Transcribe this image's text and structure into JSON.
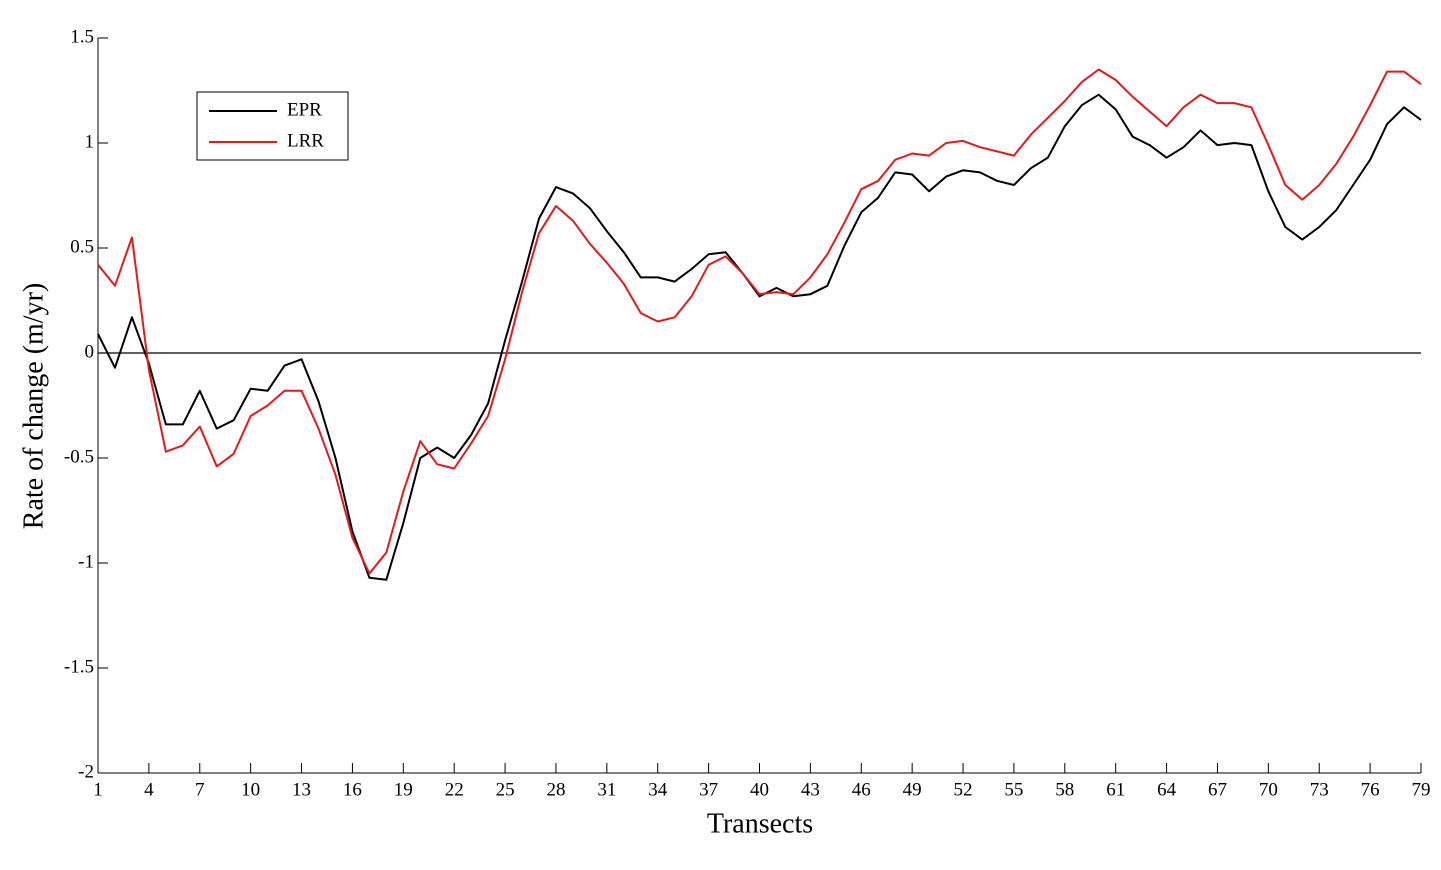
{
  "chart_data": {
    "type": "line",
    "xlabel": "Transects",
    "ylabel": "Rate of change (m/yr)",
    "x": [
      1,
      2,
      3,
      4,
      5,
      6,
      7,
      8,
      9,
      10,
      11,
      12,
      13,
      14,
      15,
      16,
      17,
      18,
      19,
      20,
      21,
      22,
      23,
      24,
      25,
      26,
      27,
      28,
      29,
      30,
      31,
      32,
      33,
      34,
      35,
      36,
      37,
      38,
      39,
      40,
      41,
      42,
      43,
      44,
      45,
      46,
      47,
      48,
      49,
      50,
      51,
      52,
      53,
      54,
      55,
      56,
      57,
      58,
      59,
      60,
      61,
      62,
      63,
      64,
      65,
      66,
      67,
      68,
      69,
      70,
      71,
      72,
      73,
      74,
      75,
      76,
      77,
      78,
      79
    ],
    "series": [
      {
        "name": "EPR",
        "color": "#000000",
        "values": [
          0.09,
          -0.07,
          0.17,
          -0.05,
          -0.34,
          -0.34,
          -0.18,
          -0.36,
          -0.32,
          -0.17,
          -0.18,
          -0.06,
          -0.03,
          -0.23,
          -0.5,
          -0.85,
          -1.07,
          -1.08,
          -0.81,
          -0.5,
          -0.45,
          -0.5,
          -0.39,
          -0.24,
          0.06,
          0.34,
          0.64,
          0.79,
          0.76,
          0.69,
          0.58,
          0.48,
          0.36,
          0.36,
          0.34,
          0.4,
          0.47,
          0.48,
          0.38,
          0.27,
          0.31,
          0.27,
          0.28,
          0.32,
          0.51,
          0.67,
          0.74,
          0.86,
          0.85,
          0.77,
          0.84,
          0.87,
          0.86,
          0.82,
          0.8,
          0.88,
          0.93,
          1.08,
          1.18,
          1.23,
          1.16,
          1.03,
          0.99,
          0.93,
          0.98,
          1.06,
          0.99,
          1.0,
          0.99,
          0.77,
          0.6,
          0.54,
          0.6,
          0.68,
          0.8,
          0.92,
          1.09,
          1.17,
          1.11
        ]
      },
      {
        "name": "LRR",
        "color": "#e31a1c",
        "values": [
          0.42,
          0.32,
          0.55,
          -0.08,
          -0.47,
          -0.44,
          -0.35,
          -0.54,
          -0.48,
          -0.3,
          -0.25,
          -0.18,
          -0.18,
          -0.36,
          -0.58,
          -0.88,
          -1.05,
          -0.95,
          -0.66,
          -0.42,
          -0.53,
          -0.55,
          -0.43,
          -0.3,
          -0.03,
          0.29,
          0.57,
          0.7,
          0.63,
          0.52,
          0.43,
          0.33,
          0.19,
          0.15,
          0.17,
          0.27,
          0.42,
          0.46,
          0.38,
          0.28,
          0.29,
          0.28,
          0.36,
          0.47,
          0.62,
          0.78,
          0.82,
          0.92,
          0.95,
          0.94,
          1.0,
          1.01,
          0.98,
          0.96,
          0.94,
          1.04,
          1.12,
          1.2,
          1.29,
          1.35,
          1.3,
          1.22,
          1.15,
          1.08,
          1.17,
          1.23,
          1.19,
          1.19,
          1.17,
          0.99,
          0.8,
          0.73,
          0.8,
          0.9,
          1.03,
          1.18,
          1.34,
          1.34,
          1.28
        ]
      }
    ],
    "xlim": [
      1,
      79
    ],
    "xticks": [
      1,
      4,
      7,
      10,
      13,
      16,
      19,
      22,
      25,
      28,
      31,
      34,
      37,
      40,
      43,
      46,
      49,
      52,
      55,
      58,
      61,
      64,
      67,
      70,
      73,
      76,
      79
    ],
    "ylim": [
      -2,
      1.5
    ],
    "yticks": [
      -2,
      -1.5,
      -1,
      -0.5,
      0,
      0.5,
      1,
      1.5
    ],
    "reference_line": 0,
    "grid": false,
    "legend": "upper left"
  }
}
